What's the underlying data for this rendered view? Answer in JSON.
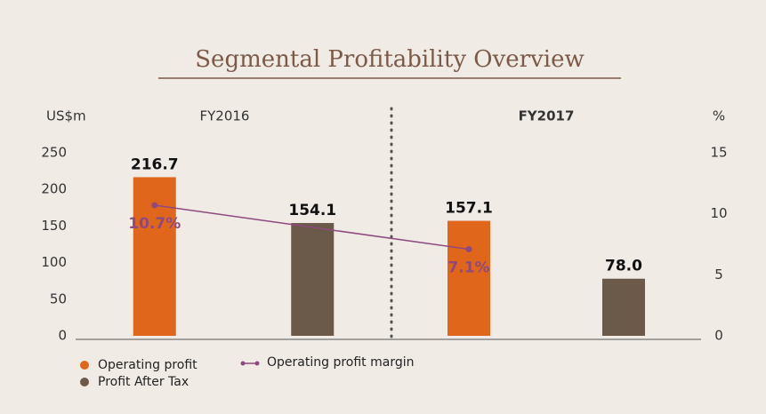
{
  "chart_data": {
    "type": "bar",
    "title": "Segmental Profitability Overview",
    "y_label": "US$m",
    "y2_label": "%",
    "categories": [
      "FY2016",
      "FY2017"
    ],
    "series": [
      {
        "name": "Operating profit",
        "color": "#e0661c",
        "values": [
          216.7,
          157.1
        ]
      },
      {
        "name": "Profit After Tax",
        "color": "#6b5a4a",
        "values": [
          154.1,
          78.0
        ],
        "value_labels": [
          "154.1",
          "78.0"
        ]
      },
      {
        "name": "Operating profit margin",
        "type": "line",
        "axis": "y2",
        "color": "#8e4a7e",
        "values": [
          10.7,
          7.1
        ],
        "value_labels": [
          "10.7%",
          "7.1%"
        ]
      }
    ],
    "ylim": [
      0,
      250
    ],
    "yticks": [
      0,
      50,
      100,
      150,
      200,
      250
    ],
    "y2lim": [
      0,
      15
    ],
    "y2ticks": [
      0,
      5,
      10,
      15
    ],
    "legend": "bottom-left"
  }
}
